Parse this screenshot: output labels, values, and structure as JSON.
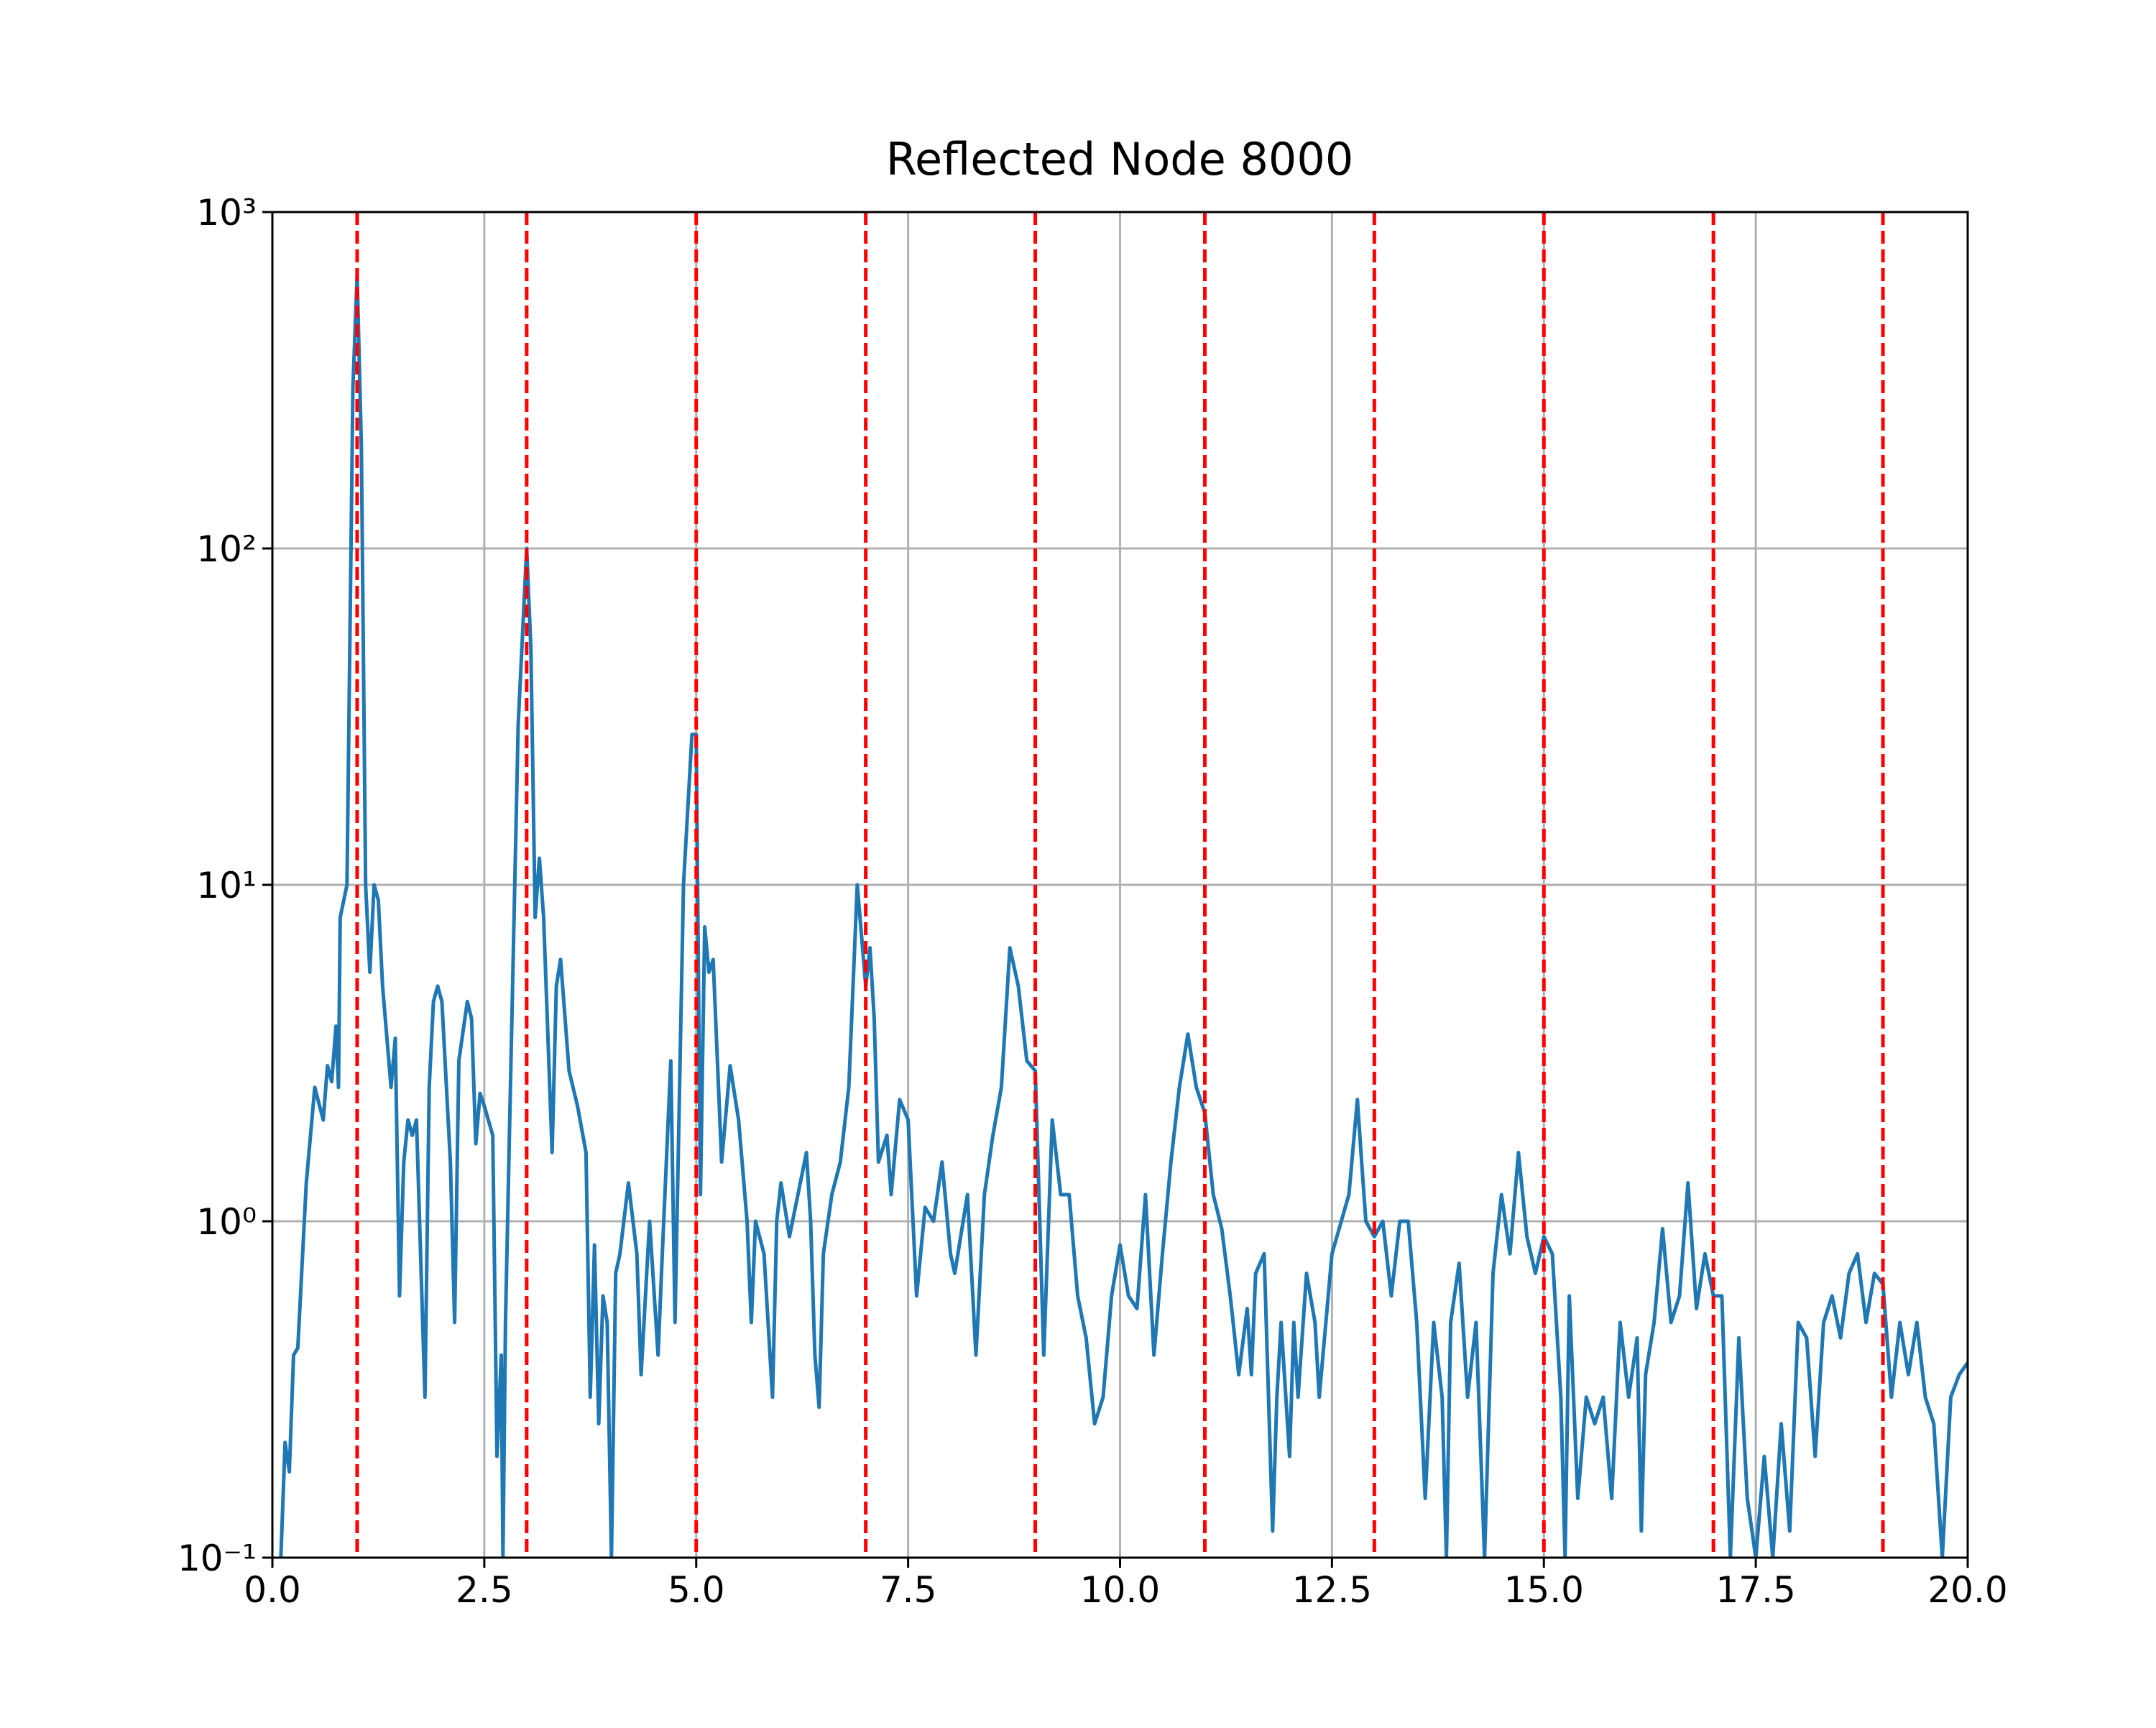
{
  "chart_data": {
    "type": "line",
    "title": "Reflected Node 8000",
    "yscale": "log",
    "grid": true,
    "color": "#1f77b4",
    "xlim": [
      0,
      20
    ],
    "ylim": [
      0.1,
      1000
    ],
    "xticks": [
      {
        "value": 0,
        "label": "0.0"
      },
      2.5,
      {
        "value": 5,
        "label": "5.0"
      },
      7.5,
      {
        "value": 10,
        "label": "10.0"
      },
      12.5,
      {
        "value": 15,
        "label": "15.0"
      },
      17.5,
      {
        "value": 20,
        "label": "20.0"
      }
    ],
    "yticks": [
      {
        "value": 0.1,
        "label": "10⁻¹"
      },
      {
        "value": 1,
        "label": "10⁰"
      },
      {
        "value": 10,
        "label": "10¹"
      },
      {
        "value": 100,
        "label": "10²"
      },
      {
        "value": 1000,
        "label": "10³"
      }
    ],
    "vlines": {
      "values": [
        1,
        3,
        5,
        7,
        9,
        11,
        13,
        15,
        17,
        19
      ],
      "color": "#ff0000",
      "style": "dashed"
    },
    "x": [
      0.1,
      0.15,
      0.2,
      0.25,
      0.3,
      0.4,
      0.5,
      0.6,
      0.65,
      0.7,
      0.75,
      0.78,
      0.8,
      0.88,
      0.95,
      1.0,
      1.05,
      1.1,
      1.15,
      1.2,
      1.25,
      1.3,
      1.4,
      1.45,
      1.5,
      1.55,
      1.6,
      1.65,
      1.7,
      1.8,
      1.85,
      1.9,
      1.95,
      2.0,
      2.1,
      2.15,
      2.2,
      2.3,
      2.35,
      2.4,
      2.45,
      2.5,
      2.6,
      2.65,
      2.7,
      2.72,
      2.75,
      2.8,
      2.9,
      3.0,
      3.05,
      3.1,
      3.15,
      3.2,
      3.3,
      3.35,
      3.4,
      3.5,
      3.6,
      3.7,
      3.75,
      3.8,
      3.85,
      3.9,
      3.95,
      4.0,
      4.05,
      4.1,
      4.2,
      4.3,
      4.35,
      4.45,
      4.55,
      4.6,
      4.7,
      4.75,
      4.85,
      4.95,
      5.0,
      5.05,
      5.1,
      5.15,
      5.2,
      5.3,
      5.4,
      5.5,
      5.6,
      5.65,
      5.7,
      5.8,
      5.9,
      5.95,
      6.0,
      6.1,
      6.2,
      6.3,
      6.35,
      6.4,
      6.45,
      6.5,
      6.6,
      6.7,
      6.8,
      6.9,
      7.0,
      7.05,
      7.1,
      7.15,
      7.25,
      7.3,
      7.4,
      7.5,
      7.6,
      7.7,
      7.8,
      7.9,
      8.0,
      8.05,
      8.2,
      8.3,
      8.4,
      8.5,
      8.6,
      8.7,
      8.8,
      8.9,
      9.0,
      9.1,
      9.2,
      9.3,
      9.4,
      9.5,
      9.6,
      9.7,
      9.8,
      9.9,
      10.0,
      10.1,
      10.2,
      10.3,
      10.4,
      10.5,
      10.6,
      10.7,
      10.8,
      10.9,
      11.0,
      11.1,
      11.2,
      11.3,
      11.4,
      11.5,
      11.55,
      11.6,
      11.7,
      11.8,
      11.85,
      11.9,
      12.0,
      12.05,
      12.1,
      12.2,
      12.3,
      12.35,
      12.5,
      12.7,
      12.8,
      12.85,
      12.9,
      13.0,
      13.1,
      13.2,
      13.3,
      13.4,
      13.5,
      13.6,
      13.7,
      13.8,
      13.85,
      13.9,
      14.0,
      14.1,
      14.2,
      14.3,
      14.4,
      14.5,
      14.6,
      14.7,
      14.8,
      14.9,
      15.0,
      15.1,
      15.2,
      15.25,
      15.3,
      15.4,
      15.5,
      15.6,
      15.7,
      15.8,
      15.9,
      16.0,
      16.1,
      16.15,
      16.2,
      16.3,
      16.4,
      16.5,
      16.6,
      16.7,
      16.8,
      16.9,
      17.0,
      17.1,
      17.2,
      17.3,
      17.4,
      17.5,
      17.6,
      17.7,
      17.8,
      17.9,
      18.0,
      18.1,
      18.2,
      18.3,
      18.4,
      18.5,
      18.6,
      18.7,
      18.8,
      18.9,
      19.0,
      19.1,
      19.2,
      19.3,
      19.4,
      19.5,
      19.6,
      19.7,
      19.8,
      19.9,
      20.0
    ],
    "values": [
      0.1,
      0.22,
      0.18,
      0.4,
      0.42,
      1.3,
      2.5,
      2.0,
      2.9,
      2.6,
      3.8,
      2.5,
      8,
      10,
      300,
      650,
      200,
      10,
      5.5,
      10,
      9,
      5,
      2.5,
      3.5,
      0.6,
      1.5,
      2,
      1.8,
      2,
      0.3,
      2.5,
      4.5,
      5,
      4.5,
      1.5,
      0.5,
      3,
      4.5,
      4,
      1.7,
      2.4,
      2.2,
      1.8,
      0.2,
      0.4,
      0.1,
      0.5,
      2,
      30,
      100,
      50,
      8,
      12,
      8,
      1.6,
      5,
      6,
      2.8,
      2.2,
      1.6,
      0.3,
      0.85,
      0.25,
      0.6,
      0.5,
      0.1,
      0.7,
      0.8,
      1.3,
      0.8,
      0.35,
      1.0,
      0.4,
      0.8,
      3.0,
      0.5,
      10,
      28,
      28,
      1.2,
      7.5,
      5.5,
      6,
      1.5,
      2.9,
      2.0,
      1.0,
      0.5,
      1.0,
      0.8,
      0.3,
      1.0,
      1.3,
      0.9,
      1.2,
      1.6,
      1.0,
      0.4,
      0.28,
      0.8,
      1.2,
      1.5,
      2.5,
      10,
      5,
      6.5,
      4,
      1.5,
      1.8,
      1.2,
      2.3,
      2,
      0.6,
      1.1,
      1.0,
      1.5,
      0.8,
      0.7,
      1.2,
      0.4,
      1.2,
      1.8,
      2.5,
      6.5,
      5,
      3,
      2.8,
      0.4,
      2,
      1.2,
      1.2,
      0.6,
      0.45,
      0.25,
      0.3,
      0.6,
      0.85,
      0.6,
      0.55,
      1.2,
      0.4,
      0.8,
      1.5,
      2.5,
      3.6,
      2.5,
      2.1,
      1.2,
      0.95,
      0.6,
      0.35,
      0.55,
      0.35,
      0.7,
      0.8,
      0.12,
      0.3,
      0.5,
      0.2,
      0.5,
      0.3,
      0.7,
      0.5,
      0.3,
      0.8,
      1.2,
      2.3,
      1.5,
      1.0,
      0.9,
      1.0,
      0.6,
      1.0,
      1.0,
      0.5,
      0.15,
      0.5,
      0.3,
      0.1,
      0.5,
      0.75,
      0.3,
      0.5,
      0.1,
      0.7,
      1.2,
      0.8,
      1.6,
      0.9,
      0.7,
      0.9,
      0.8,
      0.3,
      0.1,
      0.6,
      0.15,
      0.3,
      0.25,
      0.3,
      0.15,
      0.5,
      0.3,
      0.45,
      0.12,
      0.35,
      0.5,
      0.95,
      0.5,
      0.6,
      1.3,
      0.55,
      0.8,
      0.6,
      0.6,
      0.1,
      0.45,
      0.15,
      0.1,
      0.2,
      0.1,
      0.25,
      0.12,
      0.5,
      0.45,
      0.2,
      0.5,
      0.6,
      0.45,
      0.7,
      0.8,
      0.5,
      0.7,
      0.65,
      0.3,
      0.5,
      0.35,
      0.5,
      0.3,
      0.25,
      0.1,
      0.3,
      0.35,
      0.38
    ]
  }
}
